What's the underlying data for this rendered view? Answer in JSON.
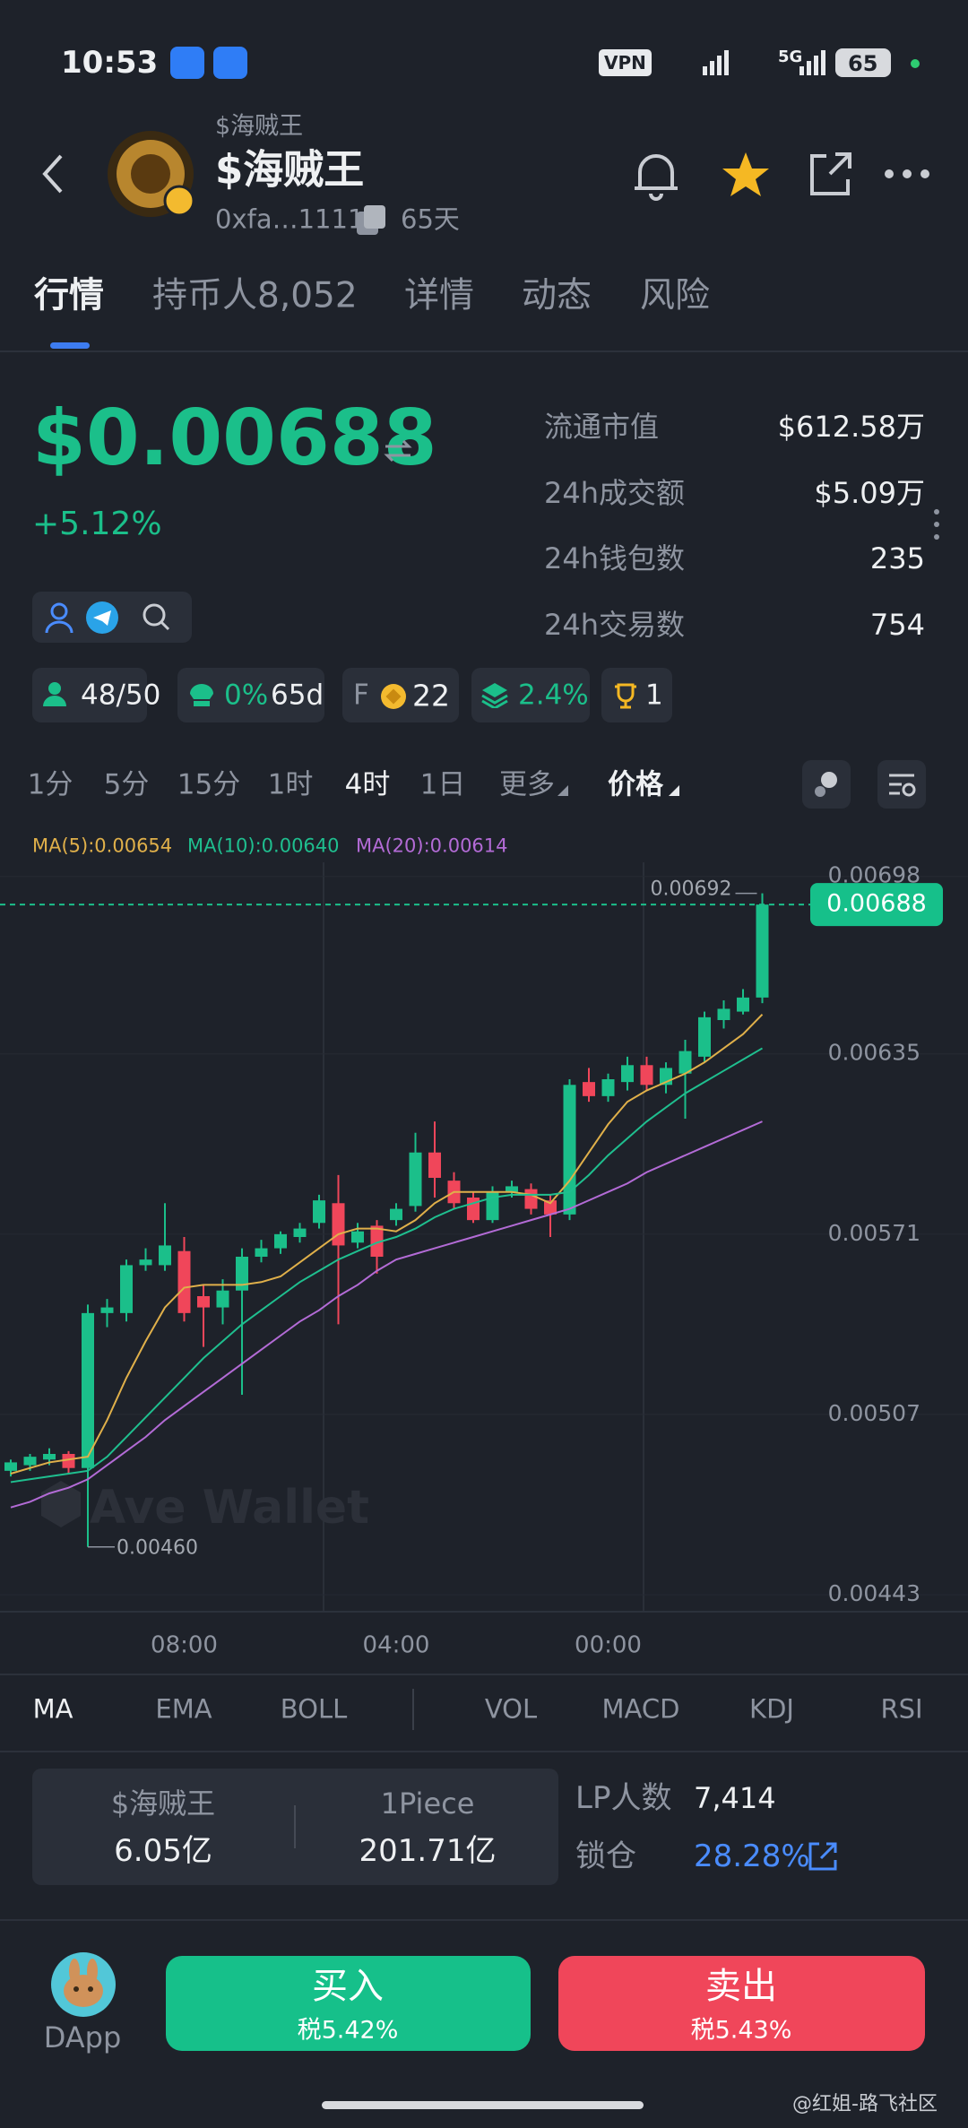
{
  "status_bar": {
    "time": "10:53",
    "vpn": "VPN",
    "network": "5G",
    "battery": "65"
  },
  "header": {
    "symbol_small": "$海贼王",
    "name": "$海贼王",
    "address": "0xfa…1111",
    "age": "65天"
  },
  "tabs": [
    "行情",
    "持币人8,052",
    "详情",
    "动态",
    "风险"
  ],
  "price": {
    "value": "$0.00688",
    "change": "+5.12%"
  },
  "stats": [
    {
      "label": "流通市值",
      "value": "$612.58万"
    },
    {
      "label": "24h成交额",
      "value": "$5.09万"
    },
    {
      "label": "24h钱包数",
      "value": "235"
    },
    {
      "label": "24h交易数",
      "value": "754"
    }
  ],
  "badges": {
    "holders": "48/50",
    "tax": "0%",
    "age": "65d",
    "f_label": "F",
    "f_value": "22",
    "lp": "2.4%",
    "rank": "1"
  },
  "timeframes": [
    "1分",
    "5分",
    "15分",
    "1时",
    "4时",
    "1日",
    "更多"
  ],
  "price_mode": "价格",
  "ma_legend": [
    "MA(5):0.00654",
    "MA(10):0.00640",
    "MA(20):0.00614"
  ],
  "chart_data": {
    "type": "candlestick",
    "categories": [
      null,
      null,
      null,
      null,
      null,
      null,
      null,
      null,
      null,
      "08:00",
      null,
      null,
      null,
      null,
      null,
      null,
      null,
      null,
      null,
      null,
      "04:00",
      null,
      null,
      null,
      null,
      null,
      null,
      null,
      null,
      null,
      null,
      "00:00",
      null,
      null,
      null,
      null,
      null,
      null,
      null,
      null
    ],
    "open": [
      0.00487,
      0.00489,
      0.00491,
      0.00493,
      0.00488,
      0.00543,
      0.00543,
      0.0056,
      0.0056,
      0.00565,
      0.00549,
      0.00545,
      0.00551,
      0.00563,
      0.00566,
      0.0057,
      0.00575,
      0.00582,
      0.00568,
      0.00574,
      0.00576,
      0.00581,
      0.006,
      0.0059,
      0.00584,
      0.00576,
      0.00586,
      0.00587,
      0.00583,
      0.00578,
      0.00625,
      0.0062,
      0.00625,
      0.00631,
      0.00624,
      0.00628,
      0.00634,
      0.00647,
      0.0065,
      0.00655
    ],
    "high": [
      0.00491,
      0.00493,
      0.00495,
      0.00494,
      0.00546,
      0.00548,
      0.00562,
      0.00566,
      0.00582,
      0.0057,
      0.00553,
      0.00555,
      0.00566,
      0.00569,
      0.00572,
      0.00575,
      0.00585,
      0.00592,
      0.00575,
      0.00576,
      0.00582,
      0.00607,
      0.00611,
      0.00593,
      0.00586,
      0.00588,
      0.0059,
      0.00589,
      0.00585,
      0.00626,
      0.0063,
      0.00628,
      0.00634,
      0.00634,
      0.00632,
      0.0064,
      0.0065,
      0.00654,
      0.00658,
      0.00692
    ],
    "low": [
      0.00485,
      0.00487,
      0.00489,
      0.00486,
      0.0046,
      0.00538,
      0.0054,
      0.00558,
      0.00558,
      0.0054,
      0.00531,
      0.00539,
      0.00514,
      0.00561,
      0.00564,
      0.00568,
      0.00573,
      0.00539,
      0.00566,
      0.00557,
      0.00574,
      0.00579,
      0.00584,
      0.0058,
      0.00575,
      0.00575,
      0.00584,
      0.00578,
      0.0057,
      0.00576,
      0.00618,
      0.00618,
      0.00622,
      0.00622,
      0.00621,
      0.00612,
      0.00632,
      0.00644,
      0.00649,
      0.00653
    ],
    "close": [
      0.0049,
      0.00492,
      0.00493,
      0.00488,
      0.00543,
      0.00545,
      0.0056,
      0.00562,
      0.00567,
      0.00543,
      0.00545,
      0.00551,
      0.00563,
      0.00566,
      0.00571,
      0.00573,
      0.00583,
      0.00567,
      0.00572,
      0.00563,
      0.0058,
      0.006,
      0.00591,
      0.00582,
      0.00576,
      0.00586,
      0.00588,
      0.0058,
      0.00578,
      0.00624,
      0.0062,
      0.00626,
      0.00631,
      0.00624,
      0.0063,
      0.00636,
      0.00648,
      0.00651,
      0.00655,
      0.00688
    ],
    "ma_lines": [
      {
        "color": "#e0b04a",
        "values": [
          0.00486,
          0.00488,
          0.0049,
          0.00491,
          0.00492,
          0.00505,
          0.0052,
          0.00533,
          0.00545,
          0.00552,
          0.00553,
          0.00553,
          0.00553,
          0.00554,
          0.00556,
          0.00561,
          0.00566,
          0.00571,
          0.00573,
          0.00573,
          0.00572,
          0.00576,
          0.00582,
          0.00586,
          0.00586,
          0.00586,
          0.00586,
          0.00585,
          0.00582,
          0.0059,
          0.006,
          0.0061,
          0.00618,
          0.00622,
          0.00625,
          0.00628,
          0.00632,
          0.00637,
          0.00642,
          0.00649
        ]
      },
      {
        "color": "#1fbf8f",
        "values": [
          0.00483,
          0.00484,
          0.00485,
          0.00486,
          0.00487,
          0.00492,
          0.00499,
          0.00506,
          0.00513,
          0.0052,
          0.00527,
          0.00533,
          0.00539,
          0.00544,
          0.00549,
          0.00554,
          0.00558,
          0.00562,
          0.00565,
          0.00568,
          0.0057,
          0.00573,
          0.00577,
          0.0058,
          0.00582,
          0.00584,
          0.00585,
          0.00585,
          0.00585,
          0.00586,
          0.00592,
          0.00599,
          0.00605,
          0.00611,
          0.00616,
          0.00621,
          0.00625,
          0.00629,
          0.00633,
          0.00637
        ]
      },
      {
        "color": "#b36bd6",
        "values": [
          0.00474,
          0.00476,
          0.00479,
          0.00481,
          0.00484,
          0.00489,
          0.00494,
          0.00499,
          0.00505,
          0.0051,
          0.00515,
          0.0052,
          0.00525,
          0.0053,
          0.00535,
          0.0054,
          0.00544,
          0.00549,
          0.00553,
          0.00558,
          0.00562,
          0.00564,
          0.00566,
          0.00568,
          0.0057,
          0.00572,
          0.00574,
          0.00576,
          0.00578,
          0.0058,
          0.00583,
          0.00586,
          0.00589,
          0.00593,
          0.00596,
          0.00599,
          0.00602,
          0.00605,
          0.00608,
          0.00611
        ]
      }
    ],
    "up_color": "#1bbf8a",
    "down_color": "#f0465a",
    "ylim": [
      0.00437,
      0.00703
    ],
    "yticks": [
      0.00698,
      0.00635,
      0.00571,
      0.00507,
      0.00443
    ],
    "last_price": {
      "value": 0.00688,
      "label": "0.00688"
    },
    "high_label": 0.00692,
    "low_label": {
      "value": 0.0046,
      "label": "0.00460"
    },
    "watermark": "Ave Wallet"
  },
  "indicators": [
    "MA",
    "EMA",
    "BOLL",
    "VOL",
    "MACD",
    "KDJ",
    "RSI"
  ],
  "supply": {
    "left_name": "$海贼王",
    "left_value": "6.05亿",
    "right_name": "1Piece",
    "right_value": "201.71亿"
  },
  "lp": {
    "label": "LP人数",
    "value": "7,414"
  },
  "lock": {
    "label": "锁仓",
    "value": "28.28%"
  },
  "actions": {
    "dapp": "DApp",
    "buy": "买入",
    "buy_tax": "税5.42%",
    "sell": "卖出",
    "sell_tax": "税5.43%"
  },
  "watermark": "@红姐-路飞社区"
}
